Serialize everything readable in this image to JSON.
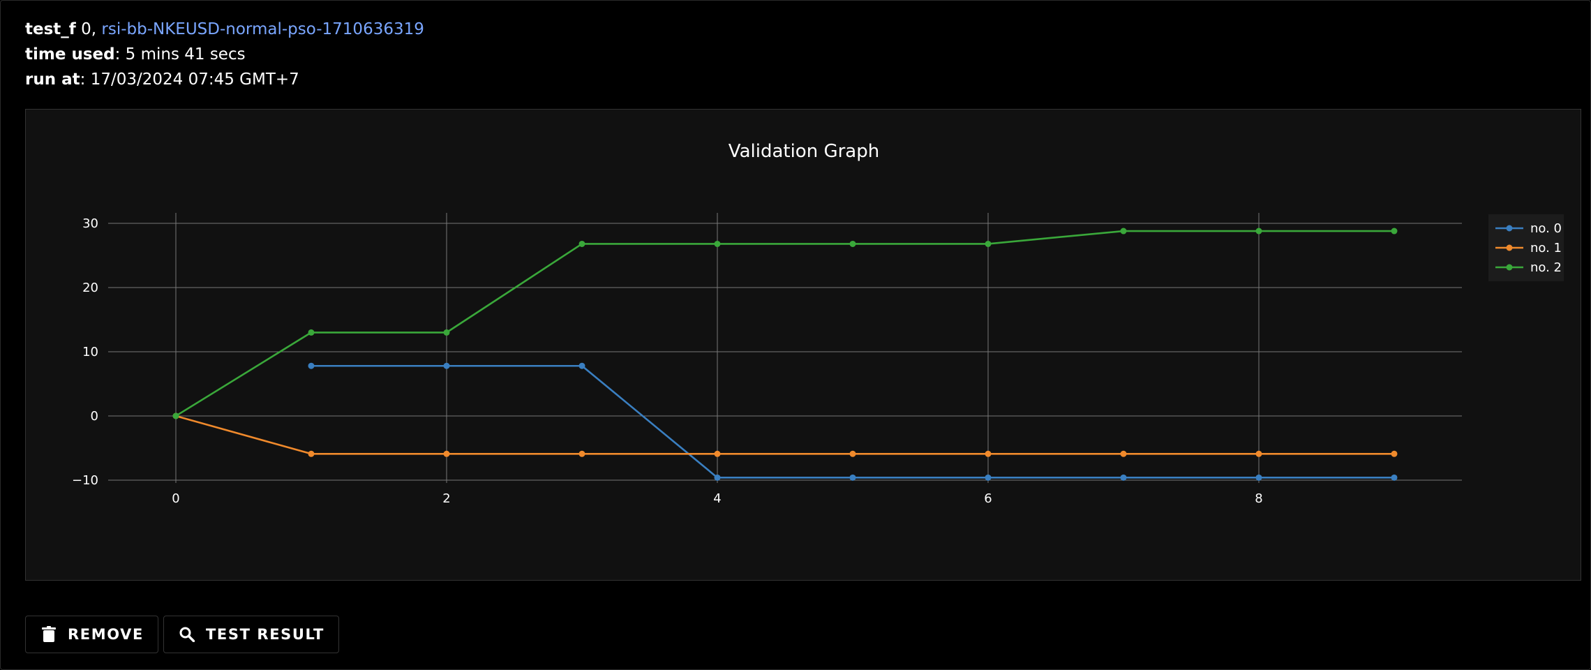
{
  "header": {
    "label_test": "test_f",
    "test_index": "0",
    "separator": ",",
    "run_name": "rsi-bb-NKEUSD-normal-pso-1710636319",
    "label_time": "time used",
    "time_used": "5 mins 41 secs",
    "label_run_at": "run at",
    "run_at": "17/03/2024 07:45 GMT+7",
    "colon": ":"
  },
  "buttons": {
    "remove_label": "REMOVE",
    "remove_icon": "trash-icon",
    "test_result_label": "TEST RESULT",
    "test_result_icon": "search-icon"
  },
  "chart_data": {
    "type": "line",
    "title": "Validation Graph",
    "xlabel": "",
    "ylabel": "",
    "xlim": [
      -0.5,
      9.5
    ],
    "ylim": [
      -10,
      30
    ],
    "x_ticks": [
      0,
      2,
      4,
      6,
      8
    ],
    "y_ticks": [
      30,
      20,
      10,
      0,
      -10
    ],
    "grid": true,
    "legend_position": "top-right",
    "series": [
      {
        "name": "no. 0",
        "color": "#3a7fc1",
        "x": [
          1,
          2,
          3,
          4,
          5,
          6,
          7,
          8,
          9
        ],
        "y": [
          7.8,
          7.8,
          7.8,
          -9.6,
          -9.6,
          -9.6,
          -9.6,
          -9.6,
          -9.6
        ]
      },
      {
        "name": "no. 1",
        "color": "#f08a2c",
        "x": [
          0,
          1,
          2,
          3,
          4,
          5,
          6,
          7,
          8,
          9
        ],
        "y": [
          0,
          -5.9,
          -5.9,
          -5.9,
          -5.9,
          -5.9,
          -5.9,
          -5.9,
          -5.9,
          -5.9
        ]
      },
      {
        "name": "no. 2",
        "color": "#3aa83a",
        "x": [
          0,
          1,
          2,
          3,
          4,
          5,
          6,
          7,
          8,
          9
        ],
        "y": [
          0,
          13,
          13,
          26.8,
          26.8,
          26.8,
          26.8,
          28.8,
          28.8,
          28.8
        ]
      }
    ]
  },
  "colors": {
    "background": "#000000",
    "panel": "#111111",
    "link": "#7aa6ff",
    "grid": "#777777"
  }
}
